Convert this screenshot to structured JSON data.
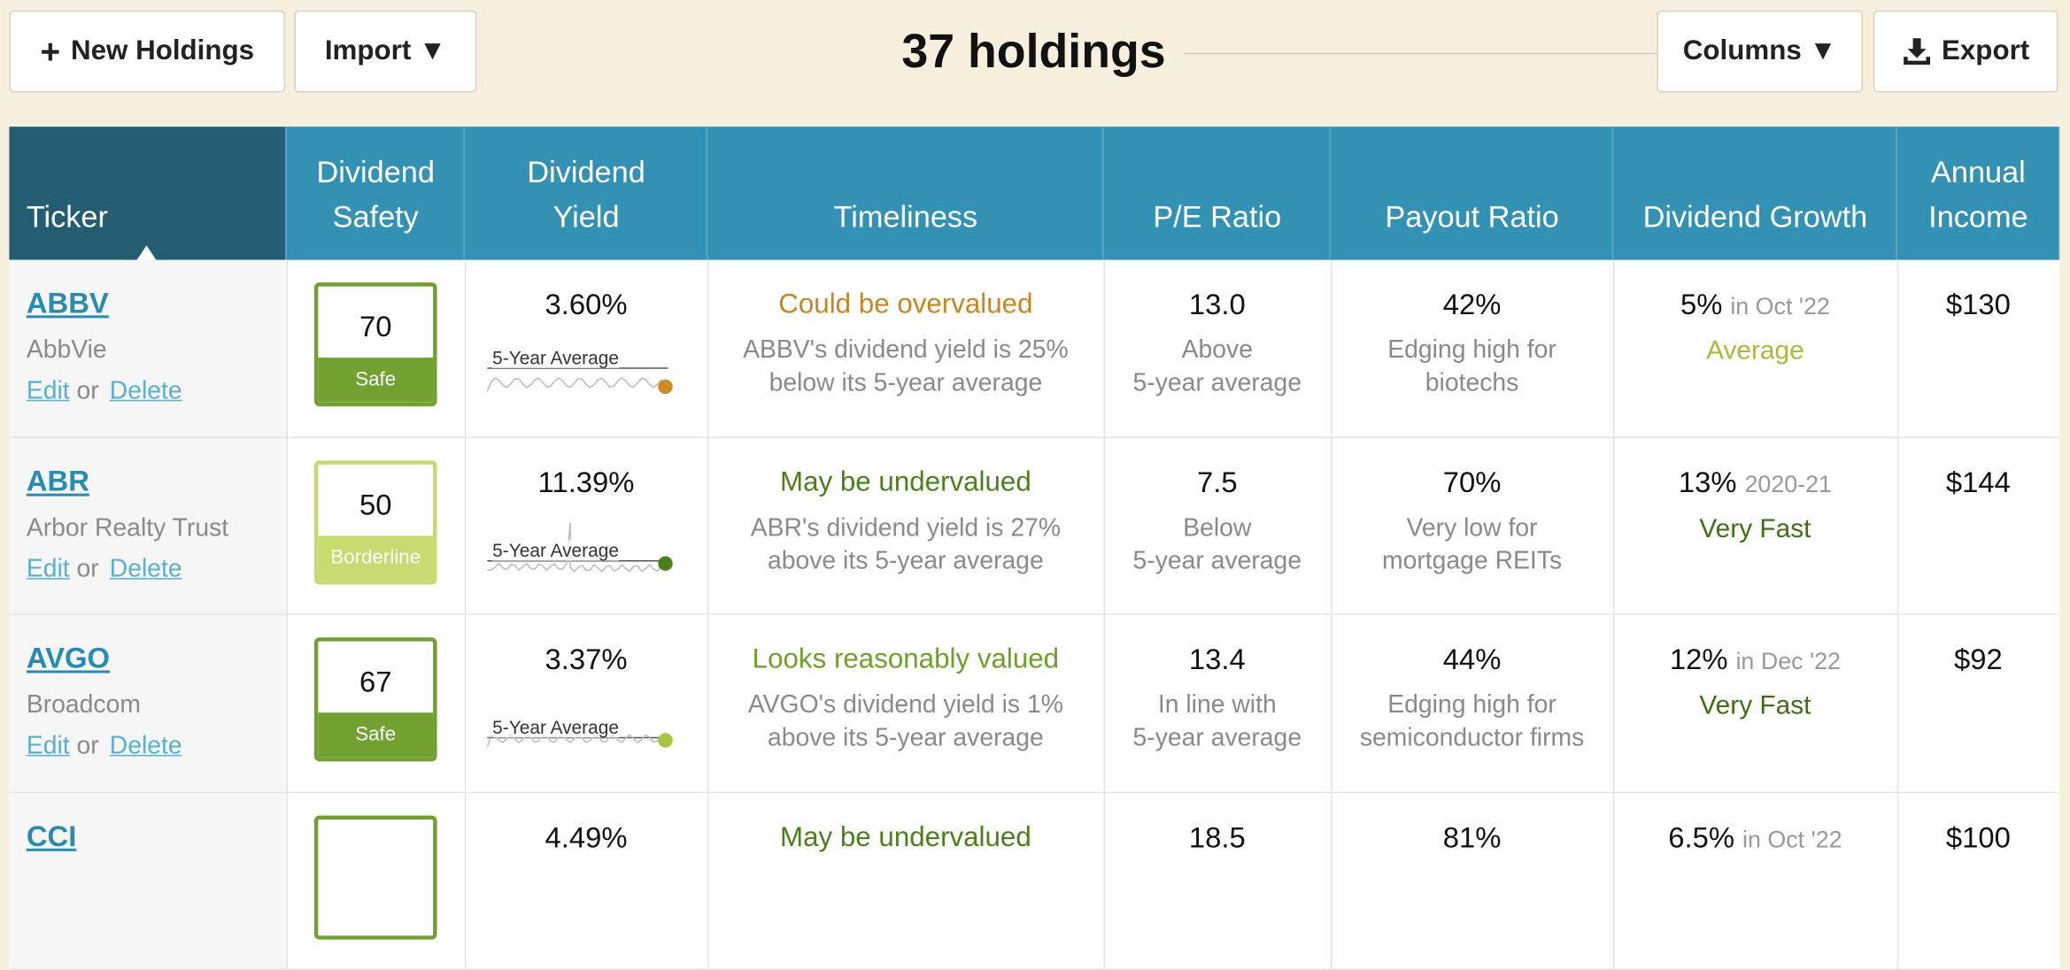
{
  "toolbar": {
    "new_button": "New Holdings",
    "import_button": "Import ▼",
    "title": "37 holdings",
    "columns_button": "Columns ▼",
    "export_button": "Export"
  },
  "table": {
    "columns": [
      [
        "Ticker"
      ],
      [
        "Dividend",
        "Safety"
      ],
      [
        "Dividend",
        "Yield"
      ],
      [
        "Timeliness"
      ],
      [
        "P/E Ratio"
      ],
      [
        "Payout Ratio"
      ],
      [
        "Dividend Growth"
      ],
      [
        "Annual",
        "Income"
      ]
    ],
    "rows": [
      {
        "ticker": "ABBV",
        "name": "AbbVie",
        "edit": "Edit",
        "or": "or",
        "delete": "Delete",
        "safety": {
          "score": "70",
          "label": "Safe",
          "color": "#72a132"
        },
        "yield": "3.60%",
        "avg_label": "5-Year Average",
        "dot_color": "#cf8a24",
        "timeliness": {
          "title": "Could be overvalued",
          "color": "#c8861e",
          "detail": [
            "ABBV's dividend yield is 25%",
            "below its 5-year average"
          ]
        },
        "pe": {
          "value": "13.0",
          "detail": [
            "Above",
            "5-year average"
          ]
        },
        "payout": {
          "value": "42%",
          "detail": [
            "Edging high for",
            "biotechs"
          ]
        },
        "growth": {
          "value": "5%",
          "note": "in Oct '22",
          "label": "Average",
          "color": "#a3bf3a"
        },
        "income": "$130"
      },
      {
        "ticker": "ABR",
        "name": "Arbor Realty Trust",
        "edit": "Edit",
        "or": "or",
        "delete": "Delete",
        "safety": {
          "score": "50",
          "label": "Borderline",
          "color": "#c6dc70"
        },
        "yield": "11.39%",
        "avg_label": "5-Year Average",
        "dot_color": "#4a7f1c",
        "timeliness": {
          "title": "May be undervalued",
          "color": "#4a7f1c",
          "detail": [
            "ABR's dividend yield is 27%",
            "above its 5-year average"
          ]
        },
        "pe": {
          "value": "7.5",
          "detail": [
            "Below",
            "5-year average"
          ]
        },
        "payout": {
          "value": "70%",
          "detail": [
            "Very low for",
            "mortgage REITs"
          ]
        },
        "growth": {
          "value": "13%",
          "note": "2020-21",
          "label": "Very Fast",
          "color": "#3f6e16"
        },
        "income": "$144"
      },
      {
        "ticker": "AVGO",
        "name": "Broadcom",
        "edit": "Edit",
        "or": "or",
        "delete": "Delete",
        "safety": {
          "score": "67",
          "label": "Safe",
          "color": "#72a132"
        },
        "yield": "3.37%",
        "avg_label": "5-Year Average",
        "dot_color": "#a6c63e",
        "timeliness": {
          "title": "Looks reasonably valued",
          "color": "#6fa02a",
          "detail": [
            "AVGO's dividend yield is 1%",
            "above its 5-year average"
          ]
        },
        "pe": {
          "value": "13.4",
          "detail": [
            "In line with",
            "5-year average"
          ]
        },
        "payout": {
          "value": "44%",
          "detail": [
            "Edging high for",
            "semiconductor firms"
          ]
        },
        "growth": {
          "value": "12%",
          "note": "in Dec '22",
          "label": "Very Fast",
          "color": "#3f6e16"
        },
        "income": "$92"
      },
      {
        "ticker": "CCI",
        "yield": "4.49%",
        "timeliness": {
          "title": "May be undervalued",
          "color": "#4a7f1c"
        },
        "pe": {
          "value": "18.5"
        },
        "payout": {
          "value": "81%"
        },
        "growth": {
          "value": "6.5%",
          "note": "in Oct '22"
        },
        "income": "$100"
      }
    ]
  }
}
